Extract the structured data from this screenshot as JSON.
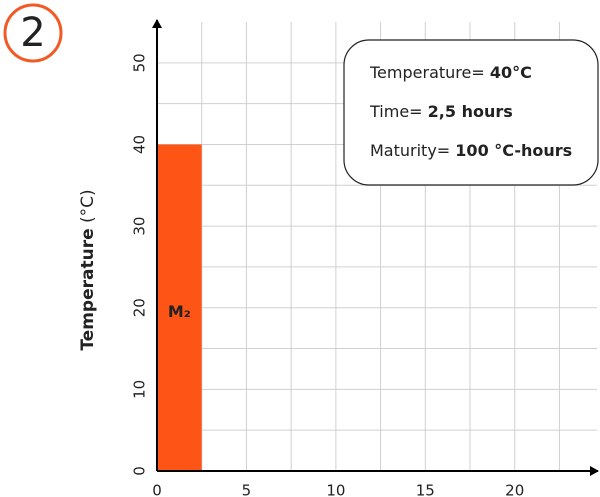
{
  "badge": "2",
  "chart_data": {
    "type": "histogram",
    "ylabel": "Temperature",
    "ylabel_unit": "(°C)",
    "bins": [
      0,
      2.5
    ],
    "values": [
      40
    ],
    "bar_label": "M₂",
    "color": "#fe5516",
    "xlim": [
      0,
      24.6
    ],
    "ylim": [
      0,
      55
    ],
    "xticks": [
      0,
      5,
      10,
      15,
      20
    ],
    "yticks": [
      0,
      10,
      20,
      30,
      40,
      50
    ],
    "grid": true,
    "annotations": [
      {
        "label": "Temperature=",
        "value": "40°C"
      },
      {
        "label": "Time=",
        "value": "2,5 hours"
      },
      {
        "label": "Maturity=",
        "value": "100 °C-hours"
      }
    ]
  }
}
